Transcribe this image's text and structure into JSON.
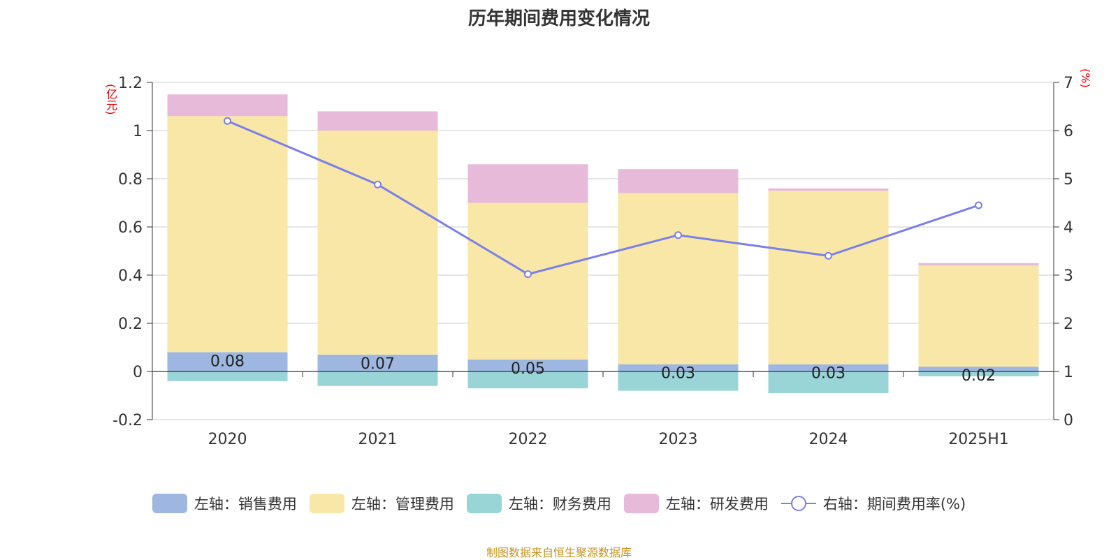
{
  "chart_data": {
    "type": "bar",
    "title": "历年期间费用变化情况",
    "categories": [
      "2020",
      "2021",
      "2022",
      "2023",
      "2024",
      "2025H1"
    ],
    "y_left": {
      "unit": "(亿元)",
      "min": -0.2,
      "max": 1.2,
      "step": 0.2,
      "ticks": [
        "-0.2",
        "0",
        "0.2",
        "0.4",
        "0.6",
        "0.8",
        "1",
        "1.2"
      ]
    },
    "y_right": {
      "unit": "(%)",
      "min": 0,
      "max": 7,
      "step": 1,
      "ticks": [
        "0",
        "1",
        "2",
        "3",
        "4",
        "5",
        "6",
        "7"
      ]
    },
    "series": [
      {
        "name": "左轴：销售费用",
        "type": "bar",
        "axis": "left",
        "color": "#9db7e1",
        "values": [
          0.08,
          0.07,
          0.05,
          0.03,
          0.03,
          0.02
        ],
        "labels": [
          "0.08",
          "0.07",
          "0.05",
          "0.03",
          "0.03",
          "0.02"
        ]
      },
      {
        "name": "左轴：管理费用",
        "type": "bar",
        "axis": "left",
        "color": "#f8e7a7",
        "values": [
          0.98,
          0.93,
          0.65,
          0.71,
          0.72,
          0.42
        ]
      },
      {
        "name": "左轴：财务费用",
        "type": "bar",
        "axis": "left",
        "color": "#99d4d6",
        "values": [
          -0.04,
          -0.06,
          -0.07,
          -0.08,
          -0.09,
          -0.02
        ]
      },
      {
        "name": "左轴：研发费用",
        "type": "bar",
        "axis": "left",
        "color": "#e8bad9",
        "values": [
          0.09,
          0.08,
          0.16,
          0.1,
          0.01,
          0.01
        ]
      },
      {
        "name": "右轴：期间费用率(%)",
        "type": "line",
        "axis": "right",
        "color": "#7b7fe8",
        "values": [
          6.2,
          4.88,
          3.02,
          3.83,
          3.4,
          4.45
        ]
      }
    ],
    "grid": true,
    "legend_position": "bottom"
  },
  "source_note": "制图数据来自恒生聚源数据库"
}
